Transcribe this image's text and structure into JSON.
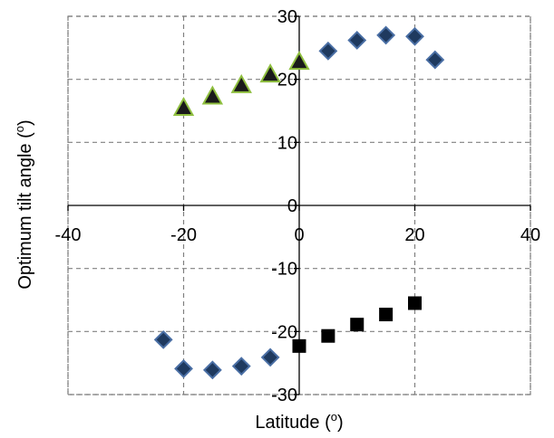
{
  "chart_data": {
    "type": "scatter",
    "xlabel": "Latitude (",
    "xlabel_sup": "o",
    "xlabel_end": ")",
    "ylabel": "Optimum tilt angle (",
    "ylabel_sup": "o",
    "ylabel_end": ")",
    "xlim": [
      -40,
      40
    ],
    "ylim": [
      -30,
      30
    ],
    "xticks": [
      -40,
      -20,
      0,
      20,
      40
    ],
    "yticks": [
      -30,
      -20,
      -10,
      0,
      10,
      20,
      30
    ],
    "grid": true,
    "series": [
      {
        "marker": "diamond",
        "color": "#4a6fa5",
        "fill": "#1f3a5f",
        "x": [
          -23.5,
          -20,
          -15,
          -10,
          -5,
          5,
          10,
          15,
          20,
          23.5
        ],
        "y": [
          -21.3,
          -25.9,
          -26.1,
          -25.5,
          -24.1,
          24.5,
          26.2,
          27.0,
          26.8,
          23.1
        ]
      },
      {
        "marker": "triangle",
        "color": "#8fbf3f",
        "fill": "#1a1a1a",
        "x": [
          -20,
          -15,
          -10,
          -5,
          0
        ],
        "y": [
          15.5,
          17.3,
          19.1,
          20.8,
          22.8
        ]
      },
      {
        "marker": "square",
        "color": "#000000",
        "fill": "#000000",
        "x": [
          0,
          5,
          10,
          15,
          20
        ],
        "y": [
          -22.3,
          -20.7,
          -18.9,
          -17.3,
          -15.5
        ]
      }
    ]
  }
}
